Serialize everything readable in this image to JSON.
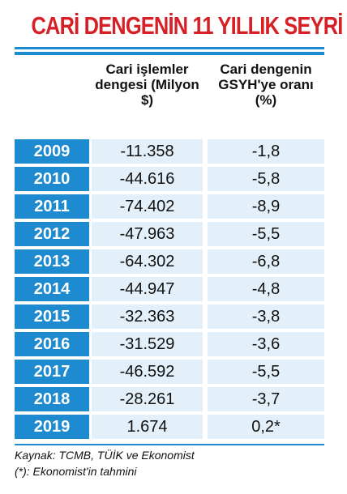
{
  "header": {
    "title": "CARİ DENGENİN 11 YILLIK SEYRİ"
  },
  "table": {
    "columns": [
      "Cari işlemler dengesi (Milyon $)",
      "Cari dengenin GSYH'ye oranı (%)"
    ],
    "rows": [
      [
        "2009",
        "-11.358",
        "-1,8"
      ],
      [
        "2010",
        "-44.616",
        "-5,8"
      ],
      [
        "2011",
        "-74.402",
        "-8,9"
      ],
      [
        "2012",
        "-47.963",
        "-5,5"
      ],
      [
        "2013",
        "-64.302",
        "-6,8"
      ],
      [
        "2014",
        "-44.947",
        "-4,8"
      ],
      [
        "2015",
        "-32.363",
        "-3,8"
      ],
      [
        "2016",
        "-31.529",
        "-3,6"
      ],
      [
        "2017",
        "-46.592",
        "-5,5"
      ],
      [
        "2018",
        "-28.261",
        "-3,7"
      ],
      [
        "2019",
        "1.674",
        "0,2*"
      ]
    ]
  },
  "footer": {
    "source": "Kaynak: TCMB, TÜİK ve Ekonomist",
    "note": "(*): Ekonomist'in tahmini"
  }
}
